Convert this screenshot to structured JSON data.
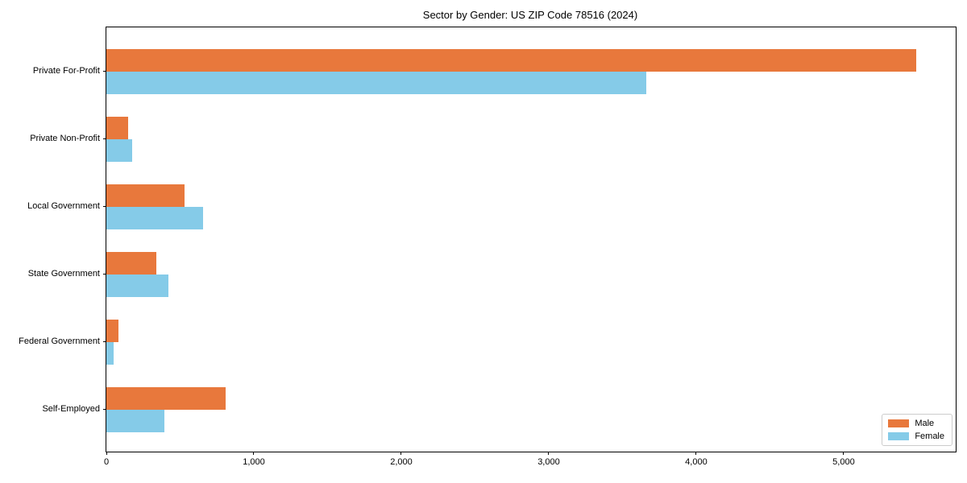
{
  "chart_data": {
    "type": "bar",
    "orientation": "horizontal",
    "title": "Sector by Gender: US ZIP Code 78516 (2024)",
    "categories": [
      "Private For-Profit",
      "Private Non-Profit",
      "Local Government",
      "State Government",
      "Federal Government",
      "Self-Employed"
    ],
    "series": [
      {
        "name": "Male",
        "color": "#E8783C",
        "values": [
          5490,
          150,
          530,
          340,
          80,
          810
        ]
      },
      {
        "name": "Female",
        "color": "#85CBE8",
        "values": [
          3660,
          175,
          655,
          420,
          50,
          395
        ]
      }
    ],
    "xlabel": "",
    "ylabel": "",
    "xlim": [
      0,
      5760
    ],
    "xticks": [
      0,
      1000,
      2000,
      3000,
      4000,
      5000
    ],
    "xtick_labels": [
      "0",
      "1,000",
      "2,000",
      "3,000",
      "4,000",
      "5,000"
    ],
    "grid": false,
    "legend_position": "lower right",
    "legend_labels": [
      "Male",
      "Female"
    ]
  },
  "colors": {
    "background": "#ffffff",
    "axis": "#000000",
    "text": "#000000",
    "legend_border": "#cccccc",
    "male": "#E8783C",
    "female": "#85CBE8"
  }
}
